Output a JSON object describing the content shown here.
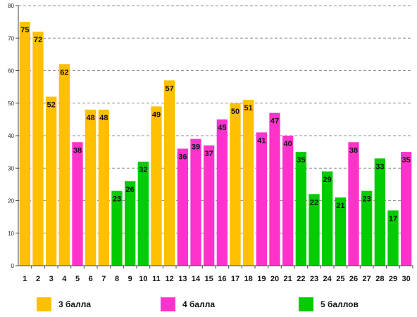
{
  "chart_data": {
    "type": "bar",
    "categories": [
      "1",
      "2",
      "3",
      "4",
      "5",
      "6",
      "7",
      "8",
      "9",
      "10",
      "11",
      "12",
      "13",
      "14",
      "15",
      "16",
      "17",
      "18",
      "19",
      "20",
      "21",
      "22",
      "23",
      "24",
      "25",
      "26",
      "27",
      "28",
      "29",
      "30"
    ],
    "values": [
      75,
      72,
      52,
      62,
      38,
      48,
      48,
      23,
      26,
      32,
      49,
      57,
      36,
      39,
      37,
      45,
      50,
      51,
      41,
      47,
      40,
      35,
      22,
      29,
      21,
      38,
      23,
      33,
      17,
      35
    ],
    "groups": [
      "3 балла",
      "3 балла",
      "3 балла",
      "3 балла",
      "4 балла",
      "3 балла",
      "3 балла",
      "5 баллов",
      "5 баллов",
      "5 баллов",
      "3 балла",
      "3 балла",
      "4 балла",
      "4 балла",
      "4 балла",
      "4 балла",
      "3 балла",
      "3 балла",
      "4 балла",
      "4 балла",
      "4 балла",
      "5 баллов",
      "5 баллов",
      "5 баллов",
      "5 баллов",
      "4 балла",
      "5 баллов",
      "5 баллов",
      "5 баллов",
      "4 балла"
    ],
    "legend": [
      {
        "name": "3 балла",
        "color": "#FFC000"
      },
      {
        "name": "4 балла",
        "color": "#FF33CC"
      },
      {
        "name": "5 баллов",
        "color": "#00CC00"
      }
    ],
    "ylim": [
      0,
      80
    ],
    "yticks": [
      0,
      10,
      20,
      30,
      40,
      50,
      60,
      70,
      80
    ],
    "grid": true,
    "legend_position": "bottom"
  }
}
